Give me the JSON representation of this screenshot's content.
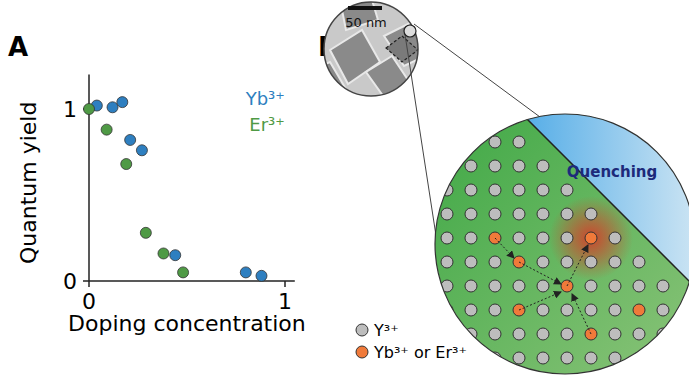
{
  "chart_data": {
    "type": "scatter",
    "title": "A",
    "x_label": "Doping concentration",
    "y_label": "Quantum yield",
    "xlim": [
      0,
      1.05
    ],
    "ylim": [
      0,
      1.2
    ],
    "xticks": [
      0,
      1
    ],
    "yticks": [
      0,
      1
    ],
    "legend": "upper-right",
    "grid": false,
    "marker": "circle",
    "series": [
      {
        "name": "Yb³⁺",
        "color": "#2e7fc0",
        "x": [
          0.04,
          0.12,
          0.17,
          0.21,
          0.27,
          0.44,
          0.8,
          0.88
        ],
        "values": [
          1.02,
          1.01,
          1.04,
          0.82,
          0.76,
          0.15,
          0.05,
          0.03
        ]
      },
      {
        "name": "Er³⁺",
        "color": "#4f9a45",
        "x": [
          0,
          0.09,
          0.19,
          0.29,
          0.38,
          0.48
        ],
        "values": [
          1.0,
          0.88,
          0.68,
          0.28,
          0.16,
          0.05
        ]
      }
    ]
  },
  "diagram": {
    "panel_label": "B",
    "scale_bar": "50 nm",
    "label": "Quenching",
    "legend": [
      {
        "label": "Y³⁺"
      },
      {
        "label": "Yb³⁺ or Er³⁺"
      }
    ]
  }
}
